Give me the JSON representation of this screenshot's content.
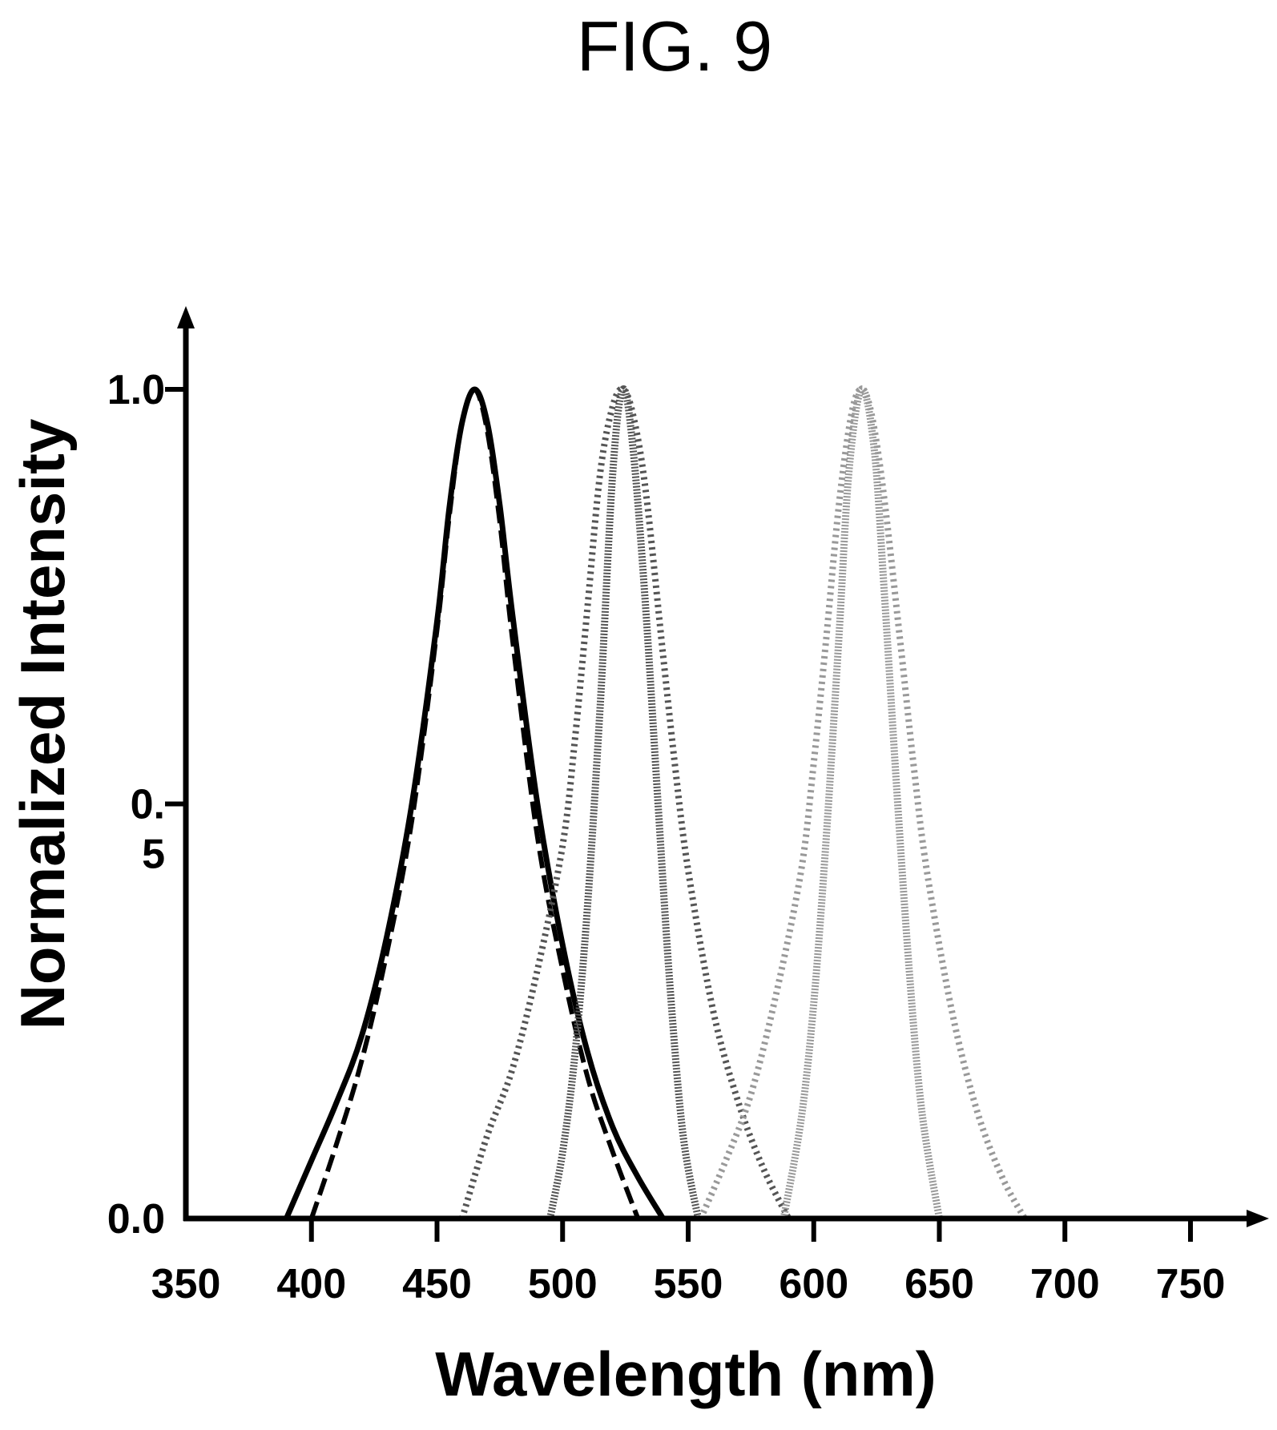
{
  "figure": {
    "label": "FIG. 9"
  },
  "chart_data": {
    "type": "line",
    "title": "FIG. 9",
    "xlabel": "Wavelength (nm)",
    "ylabel": "Normalized Intensity",
    "xlim": [
      350,
      770
    ],
    "ylim": [
      0,
      1.05
    ],
    "xticks": [
      350,
      400,
      450,
      500,
      550,
      600,
      650,
      700,
      750
    ],
    "xtick_labels": [
      "350",
      "400",
      "450",
      "500",
      "550",
      "600",
      "650",
      "700",
      "750"
    ],
    "yticks": [
      0,
      0.5,
      1.0
    ],
    "ytick_labels": [
      "0.0",
      "0.\n5",
      "1.0"
    ],
    "grid": false,
    "legend": "none",
    "series": [
      {
        "style": "solid",
        "color": "#000000",
        "x": [
          390,
          400,
          410,
          420,
          430,
          440,
          450,
          455,
          460,
          465,
          470,
          475,
          480,
          490,
          500,
          510,
          520,
          530,
          540
        ],
        "y": [
          0.0,
          0.07,
          0.14,
          0.22,
          0.34,
          0.5,
          0.72,
          0.86,
          0.96,
          1.0,
          0.96,
          0.86,
          0.73,
          0.5,
          0.33,
          0.2,
          0.11,
          0.05,
          0.0
        ]
      },
      {
        "style": "dashed",
        "color": "#000000",
        "x": [
          400,
          410,
          420,
          430,
          440,
          450,
          455,
          460,
          465,
          470,
          475,
          480,
          490,
          500,
          510,
          520,
          530
        ],
        "y": [
          0.0,
          0.09,
          0.19,
          0.32,
          0.48,
          0.71,
          0.85,
          0.96,
          1.0,
          0.95,
          0.84,
          0.7,
          0.46,
          0.3,
          0.17,
          0.08,
          0.0
        ]
      },
      {
        "style": "dotted-wide",
        "color": "#555555",
        "x": [
          460,
          470,
          480,
          490,
          500,
          505,
          510,
          515,
          520,
          524,
          528,
          533,
          540,
          545,
          550,
          560,
          570,
          580,
          590
        ],
        "y": [
          0.0,
          0.1,
          0.18,
          0.3,
          0.45,
          0.58,
          0.74,
          0.9,
          0.98,
          1.0,
          0.97,
          0.88,
          0.68,
          0.54,
          0.42,
          0.25,
          0.14,
          0.06,
          0.0
        ]
      },
      {
        "style": "dotted-narrow",
        "color": "#555555",
        "x": [
          495,
          500,
          505,
          510,
          515,
          520,
          524,
          528,
          533,
          538,
          543,
          548,
          554
        ],
        "y": [
          0.0,
          0.08,
          0.2,
          0.38,
          0.62,
          0.9,
          1.0,
          0.93,
          0.74,
          0.5,
          0.27,
          0.1,
          0.0
        ]
      },
      {
        "style": "dotted-wide",
        "color": "#999999",
        "x": [
          555,
          565,
          575,
          585,
          595,
          600,
          605,
          610,
          615,
          619,
          623,
          628,
          635,
          640,
          645,
          655,
          665,
          675,
          684
        ],
        "y": [
          0.0,
          0.07,
          0.15,
          0.27,
          0.42,
          0.55,
          0.7,
          0.86,
          0.97,
          1.0,
          0.97,
          0.87,
          0.68,
          0.54,
          0.42,
          0.25,
          0.13,
          0.05,
          0.0
        ]
      },
      {
        "style": "dotted-narrow",
        "color": "#999999",
        "x": [
          588,
          595,
          600,
          605,
          610,
          614,
          619,
          624,
          628,
          633,
          638,
          643,
          650
        ],
        "y": [
          0.0,
          0.12,
          0.26,
          0.46,
          0.7,
          0.9,
          1.0,
          0.93,
          0.76,
          0.52,
          0.3,
          0.13,
          0.0
        ]
      }
    ]
  }
}
